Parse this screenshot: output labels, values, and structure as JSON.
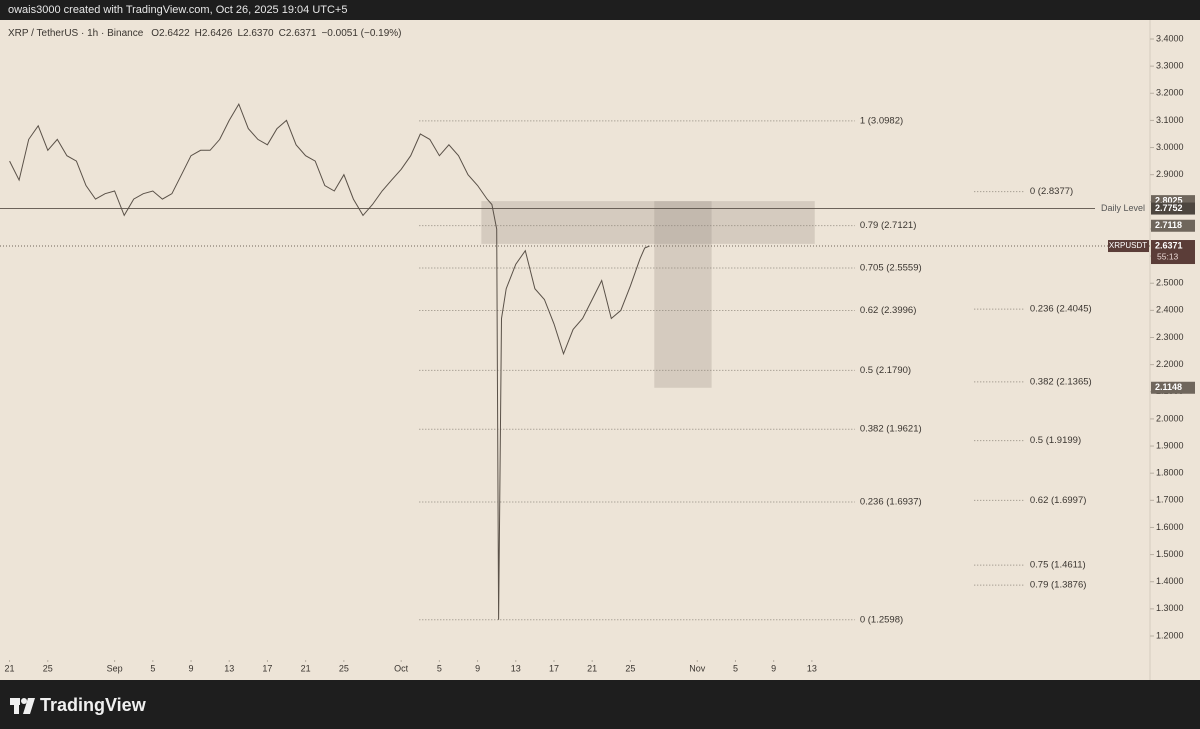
{
  "chart_data": {
    "type": "line",
    "watermark": "owais3000 created with TradingView.com, Oct 26, 2025 19:04 UTC+5",
    "title": "XRP / TetherUS · 1h · Binance",
    "ohlc": [
      {
        "label": "O",
        "value": "2.6422"
      },
      {
        "label": "H",
        "value": "2.6426"
      },
      {
        "label": "L",
        "value": "2.6370"
      },
      {
        "label": "C",
        "value": "2.6371"
      }
    ],
    "change": "−0.0051 (−0.19%)",
    "brand": "TradingView",
    "color": "#5a5148",
    "x": [
      0,
      1,
      2,
      3,
      4,
      5,
      6,
      7,
      8,
      9,
      10,
      11,
      12,
      13,
      14,
      15,
      16,
      17,
      18,
      19,
      20,
      21,
      22,
      23,
      24,
      25,
      26,
      27,
      28,
      29,
      30,
      31,
      32,
      33,
      34,
      35,
      36,
      37,
      38,
      39,
      40,
      41,
      42,
      43,
      44,
      45,
      46,
      47,
      48,
      49,
      50,
      50.5,
      51,
      51.2,
      51.5,
      52,
      53,
      54,
      55,
      56,
      57,
      58,
      59,
      60,
      61,
      62,
      63,
      64,
      65,
      66,
      66.5,
      67
    ],
    "values": [
      2.95,
      2.88,
      3.03,
      3.08,
      2.99,
      3.03,
      2.97,
      2.95,
      2.86,
      2.81,
      2.83,
      2.84,
      2.75,
      2.81,
      2.83,
      2.84,
      2.81,
      2.83,
      2.9,
      2.97,
      2.99,
      2.99,
      3.03,
      3.1,
      3.16,
      3.07,
      3.03,
      3.01,
      3.07,
      3.1,
      3.01,
      2.97,
      2.95,
      2.86,
      2.84,
      2.9,
      2.81,
      2.75,
      2.79,
      2.84,
      2.88,
      2.92,
      2.97,
      3.05,
      3.03,
      2.97,
      3.01,
      2.97,
      2.9,
      2.86,
      2.81,
      2.79,
      2.7,
      1.2598,
      2.37,
      2.48,
      2.57,
      2.62,
      2.48,
      2.44,
      2.35,
      2.24,
      2.33,
      2.37,
      2.44,
      2.51,
      2.37,
      2.4,
      2.49,
      2.59,
      2.63,
      2.6371
    ],
    "xlim": [
      -1,
      119.4
    ],
    "xticks": [
      {
        "value": 0,
        "label": "21"
      },
      {
        "value": 4,
        "label": "25"
      },
      {
        "value": 11,
        "label": "Sep"
      },
      {
        "value": 15,
        "label": "5"
      },
      {
        "value": 19,
        "label": "9"
      },
      {
        "value": 23,
        "label": "13"
      },
      {
        "value": 27,
        "label": "17"
      },
      {
        "value": 31,
        "label": "21"
      },
      {
        "value": 35,
        "label": "25"
      },
      {
        "value": 41,
        "label": "Oct"
      },
      {
        "value": 45,
        "label": "5"
      },
      {
        "value": 49,
        "label": "9"
      },
      {
        "value": 53,
        "label": "13"
      },
      {
        "value": 57,
        "label": "17"
      },
      {
        "value": 61,
        "label": "21"
      },
      {
        "value": 65,
        "label": "25"
      },
      {
        "value": 72,
        "label": "Nov"
      },
      {
        "value": 76,
        "label": "5"
      },
      {
        "value": 80,
        "label": "9"
      },
      {
        "value": 84,
        "label": "13"
      }
    ],
    "ylim": [
      1.2,
      3.4
    ],
    "yticks": [
      {
        "value": 1.2,
        "label": "1.2000"
      },
      {
        "value": 1.3,
        "label": "1.3000"
      },
      {
        "value": 1.4,
        "label": "1.4000"
      },
      {
        "value": 1.5,
        "label": "1.5000"
      },
      {
        "value": 1.6,
        "label": "1.6000"
      },
      {
        "value": 1.7,
        "label": "1.7000"
      },
      {
        "value": 1.8,
        "label": "1.8000"
      },
      {
        "value": 1.9,
        "label": "1.9000"
      },
      {
        "value": 2.0,
        "label": "2.0000"
      },
      {
        "value": 2.1,
        "label": "2.1000"
      },
      {
        "value": 2.2,
        "label": "2.2000"
      },
      {
        "value": 2.3,
        "label": "2.3000"
      },
      {
        "value": 2.4,
        "label": "2.4000"
      },
      {
        "value": 2.5,
        "label": "2.5000"
      },
      {
        "value": 2.6,
        "label": "2.6000"
      },
      {
        "value": 2.7,
        "label": "2.7000"
      },
      {
        "value": 2.8,
        "label": "2.8000"
      },
      {
        "value": 2.9,
        "label": "2.9000"
      },
      {
        "value": 3.0,
        "label": "3.0000"
      },
      {
        "value": 3.1,
        "label": "3.1000"
      },
      {
        "value": 3.2,
        "label": "3.2000"
      },
      {
        "value": 3.3,
        "label": "3.3000"
      },
      {
        "value": 3.4,
        "label": "3.4000"
      }
    ],
    "grid": false,
    "zones": [
      {
        "x": [
          49.4,
          84.3
        ],
        "y": [
          2.645,
          2.8025
        ]
      },
      {
        "x": [
          67.5,
          73.5
        ],
        "y": [
          2.1148,
          2.8025
        ]
      }
    ],
    "fibs": [
      {
        "x": [
          42.9,
          88.5
        ],
        "levels": [
          {
            "value": 3.0982,
            "label": "1 (3.0982)"
          },
          {
            "value": 2.7121,
            "label": "0.79 (2.7121)"
          },
          {
            "value": 2.5559,
            "label": "0.705 (2.5559)"
          },
          {
            "value": 2.3996,
            "label": "0.62 (2.3996)"
          },
          {
            "value": 2.179,
            "label": "0.5 (2.1790)"
          },
          {
            "value": 1.9621,
            "label": "0.382 (1.9621)"
          },
          {
            "value": 1.6937,
            "label": "0.236 (1.6937)"
          },
          {
            "value": 1.2598,
            "label": "0 (1.2598)"
          }
        ]
      },
      {
        "x": [
          101,
          106.3
        ],
        "levels": [
          {
            "value": 2.8377,
            "label": "0 (2.8377)"
          },
          {
            "value": 2.4045,
            "label": "0.236 (2.4045)"
          },
          {
            "value": 2.1365,
            "label": "0.382 (2.1365)"
          },
          {
            "value": 1.9199,
            "label": "0.5 (1.9199)"
          },
          {
            "value": 1.6997,
            "label": "0.62 (1.6997)"
          },
          {
            "value": 1.4611,
            "label": "0.75 (1.4611)"
          },
          {
            "value": 1.3876,
            "label": "0.79 (1.3876)"
          }
        ]
      }
    ],
    "daily_level": {
      "name": "Daily Level",
      "value": 2.7752,
      "label": "2.7752"
    },
    "price_tags": [
      {
        "value": 2.8025,
        "label": "2.8025"
      },
      {
        "value": 2.7118,
        "label": "2.7118"
      },
      {
        "value": 2.1148,
        "label": "2.1148"
      }
    ],
    "last_price": {
      "symbol": "XRPUSDT",
      "value": 2.6371,
      "label": "2.6371",
      "countdown": "55:13"
    }
  }
}
